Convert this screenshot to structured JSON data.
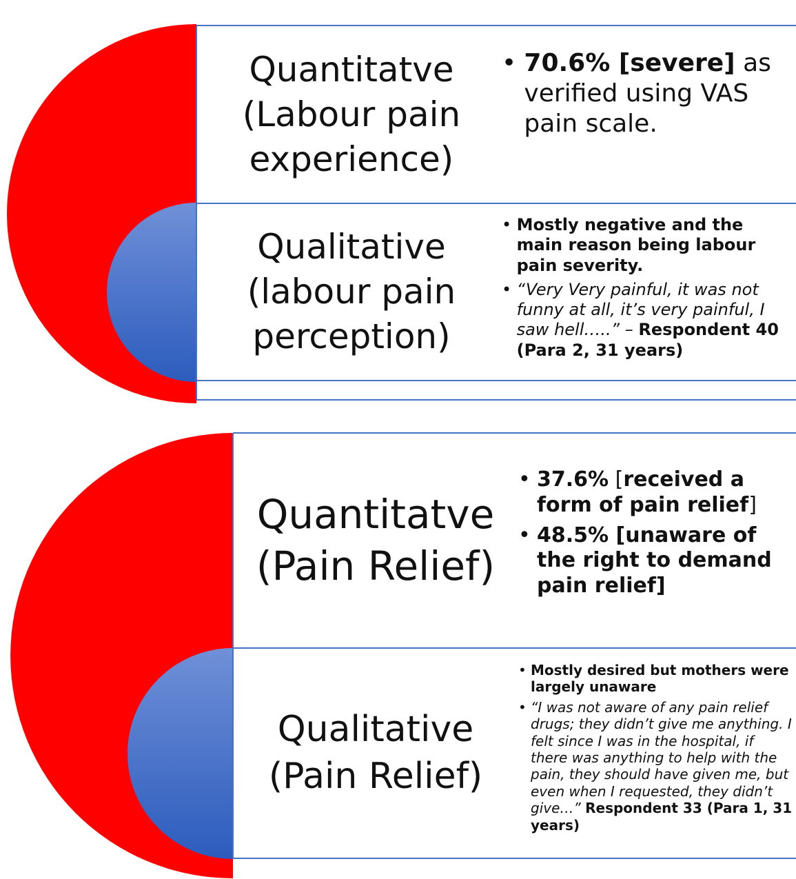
{
  "panels": [
    {
      "rows": [
        {
          "heading": "Quantitatve (Labour pain experience)",
          "bullets": [
            [
              {
                "text": "70.6% [severe]",
                "style": "bold"
              },
              {
                "text": " as verified using VAS pain scale."
              }
            ]
          ]
        },
        {
          "heading": "Qualitative (labour pain perception)",
          "bullets": [
            [
              {
                "text": "Mostly negative and the main reason being labour pain severity.",
                "style": "bold"
              }
            ],
            [
              {
                "text": "“Very Very painful, it was not funny at all, it’s very painful, I saw hell…..”",
                "style": "italic"
              },
              {
                "text": " – "
              },
              {
                "text": "Respondent 40 (Para 2, 31 years)",
                "style": "bold"
              }
            ]
          ]
        }
      ]
    },
    {
      "rows": [
        {
          "heading": "Quantitatve (Pain Relief)",
          "bullets": [
            [
              {
                "text": "37.6%",
                "style": "bold"
              },
              {
                "text": " ["
              },
              {
                "text": "received a form of pain relief",
                "style": "bold"
              },
              {
                "text": "]"
              }
            ],
            [
              {
                "text": "48.5% [unaware of the right to demand pain relief]",
                "style": "bold"
              }
            ]
          ]
        },
        {
          "heading": "Qualitative (Pain Relief)",
          "bullets": [
            [
              {
                "text": "Mostly desired but mothers were largely unaware",
                "style": "bold"
              }
            ],
            [
              {
                "text": "“I was not aware of any pain relief drugs; they didn’t give me anything. I felt since I was in the hospital, if there was anything to help with the pain, they should have given me, but even when I requested, they didn’t give…” ",
                "style": "italic"
              },
              {
                "text": "Respondent 33 (Para 1, 31 years)",
                "style": "bold"
              }
            ]
          ]
        }
      ]
    }
  ]
}
